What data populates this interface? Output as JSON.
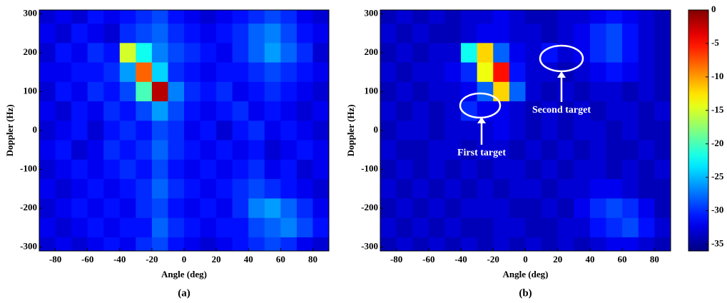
{
  "chart_data": [
    {
      "type": "heatmap",
      "label": "(a)",
      "xlabel": "Angle (deg)",
      "ylabel": "Doppler (Hz)",
      "colormap": "jet",
      "xlim": [
        -90,
        90
      ],
      "xticks": [
        -80,
        -60,
        -40,
        -20,
        0,
        20,
        40,
        60,
        80
      ],
      "ylim": [
        -310,
        310
      ],
      "yticks": [
        -300,
        -200,
        -100,
        0,
        100,
        200,
        300
      ],
      "clim": [
        -36,
        0
      ],
      "x": [
        -85,
        -75,
        -65,
        -55,
        -45,
        -35,
        -25,
        -15,
        -5,
        5,
        15,
        25,
        35,
        45,
        55,
        65,
        75,
        85
      ],
      "y": [
        300,
        250,
        200,
        150,
        100,
        50,
        0,
        -50,
        -100,
        -150,
        -200,
        -250,
        -300
      ],
      "z": [
        [
          -33,
          -32,
          -33,
          -31,
          -32,
          -31,
          -30,
          -29,
          -31,
          -32,
          -33,
          -32,
          -31,
          -30,
          -29,
          -30,
          -32,
          -33
        ],
        [
          -32,
          -33,
          -31,
          -32,
          -33,
          -30,
          -29,
          -28,
          -30,
          -31,
          -32,
          -31,
          -30,
          -28,
          -27,
          -29,
          -31,
          -32
        ],
        [
          -33,
          -31,
          -32,
          -30,
          -31,
          -15,
          -22,
          -27,
          -29,
          -30,
          -31,
          -32,
          -30,
          -28,
          -26,
          -28,
          -30,
          -33
        ],
        [
          -32,
          -32,
          -31,
          -31,
          -30,
          -26,
          -8,
          -24,
          -30,
          -31,
          -32,
          -31,
          -31,
          -30,
          -29,
          -30,
          -31,
          -32
        ],
        [
          -33,
          -31,
          -32,
          -30,
          -31,
          -29,
          -20,
          -2,
          -27,
          -30,
          -31,
          -30,
          -32,
          -31,
          -30,
          -31,
          -32,
          -33
        ],
        [
          -32,
          -33,
          -31,
          -32,
          -30,
          -31,
          -29,
          -26,
          -29,
          -31,
          -32,
          -31,
          -30,
          -32,
          -31,
          -32,
          -33,
          -32
        ],
        [
          -33,
          -32,
          -31,
          -33,
          -31,
          -30,
          -31,
          -29,
          -30,
          -32,
          -31,
          -33,
          -31,
          -30,
          -32,
          -31,
          -32,
          -33
        ],
        [
          -32,
          -31,
          -33,
          -32,
          -30,
          -31,
          -30,
          -28,
          -30,
          -31,
          -32,
          -31,
          -32,
          -31,
          -33,
          -32,
          -31,
          -32
        ],
        [
          -33,
          -32,
          -31,
          -32,
          -31,
          -30,
          -31,
          -29,
          -31,
          -32,
          -31,
          -32,
          -31,
          -30,
          -32,
          -31,
          -33,
          -32
        ],
        [
          -32,
          -33,
          -32,
          -31,
          -32,
          -31,
          -30,
          -28,
          -30,
          -31,
          -32,
          -31,
          -30,
          -29,
          -30,
          -31,
          -32,
          -33
        ],
        [
          -33,
          -32,
          -31,
          -32,
          -31,
          -32,
          -30,
          -29,
          -31,
          -32,
          -31,
          -32,
          -30,
          -27,
          -26,
          -28,
          -30,
          -32
        ],
        [
          -32,
          -33,
          -32,
          -31,
          -32,
          -31,
          -31,
          -28,
          -30,
          -31,
          -32,
          -31,
          -31,
          -29,
          -28,
          -27,
          -29,
          -31
        ],
        [
          -33,
          -32,
          -33,
          -32,
          -31,
          -32,
          -30,
          -29,
          -31,
          -32,
          -33,
          -32,
          -31,
          -30,
          -29,
          -30,
          -32,
          -33
        ]
      ]
    },
    {
      "type": "heatmap",
      "label": "(b)",
      "xlabel": "Angle (deg)",
      "ylabel": "Doppler (Hz)",
      "colormap": "jet",
      "xlim": [
        -90,
        90
      ],
      "xticks": [
        -80,
        -60,
        -40,
        -20,
        0,
        20,
        40,
        60,
        80
      ],
      "ylim": [
        -310,
        310
      ],
      "yticks": [
        -300,
        -200,
        -100,
        0,
        100,
        200,
        300
      ],
      "clim": [
        -36,
        0
      ],
      "cticks": [
        0,
        -5,
        -10,
        -15,
        -20,
        -25,
        -30,
        -35
      ],
      "annotations": [
        "First target",
        "Second target"
      ],
      "x": [
        -85,
        -75,
        -65,
        -55,
        -45,
        -35,
        -25,
        -15,
        -5,
        5,
        15,
        25,
        35,
        45,
        55,
        65,
        75,
        85
      ],
      "y": [
        300,
        250,
        200,
        150,
        100,
        50,
        0,
        -50,
        -100,
        -150,
        -200,
        -250,
        -300
      ],
      "z": [
        [
          -34,
          -33,
          -34,
          -33,
          -34,
          -33,
          -33,
          -32,
          -33,
          -34,
          -34,
          -33,
          -33,
          -32,
          -31,
          -32,
          -33,
          -34
        ],
        [
          -33,
          -34,
          -33,
          -34,
          -34,
          -33,
          -32,
          -32,
          -33,
          -33,
          -34,
          -33,
          -32,
          -30,
          -29,
          -31,
          -33,
          -34
        ],
        [
          -34,
          -33,
          -34,
          -33,
          -33,
          -22,
          -12,
          -28,
          -32,
          -33,
          -31,
          -33,
          -32,
          -30,
          -29,
          -31,
          -33,
          -34
        ],
        [
          -33,
          -34,
          -33,
          -33,
          -32,
          -30,
          -14,
          -5,
          -31,
          -33,
          -33,
          -34,
          -33,
          -32,
          -31,
          -32,
          -33,
          -34
        ],
        [
          -34,
          -33,
          -34,
          -33,
          -33,
          -32,
          -28,
          -12,
          -28,
          -33,
          -34,
          -33,
          -34,
          -33,
          -33,
          -34,
          -33,
          -34
        ],
        [
          -33,
          -34,
          -33,
          -34,
          -33,
          -30,
          -32,
          -32,
          -33,
          -34,
          -33,
          -34,
          -33,
          -34,
          -33,
          -33,
          -34,
          -33
        ],
        [
          -34,
          -33,
          -33,
          -34,
          -33,
          -33,
          -33,
          -32,
          -33,
          -34,
          -33,
          -34,
          -33,
          -33,
          -34,
          -33,
          -34,
          -34
        ],
        [
          -33,
          -34,
          -34,
          -33,
          -33,
          -34,
          -33,
          -33,
          -34,
          -33,
          -34,
          -33,
          -34,
          -33,
          -34,
          -34,
          -33,
          -34
        ],
        [
          -34,
          -33,
          -34,
          -33,
          -34,
          -33,
          -34,
          -33,
          -33,
          -34,
          -33,
          -34,
          -33,
          -33,
          -34,
          -33,
          -34,
          -33
        ],
        [
          -33,
          -34,
          -33,
          -34,
          -33,
          -34,
          -33,
          -34,
          -33,
          -33,
          -34,
          -33,
          -33,
          -32,
          -32,
          -33,
          -34,
          -34
        ],
        [
          -34,
          -33,
          -34,
          -33,
          -34,
          -33,
          -33,
          -33,
          -34,
          -34,
          -33,
          -34,
          -32,
          -30,
          -29,
          -30,
          -32,
          -34
        ],
        [
          -33,
          -34,
          -33,
          -34,
          -33,
          -34,
          -34,
          -33,
          -33,
          -34,
          -34,
          -33,
          -33,
          -31,
          -30,
          -29,
          -31,
          -33
        ],
        [
          -34,
          -33,
          -34,
          -33,
          -34,
          -33,
          -34,
          -33,
          -34,
          -33,
          -34,
          -33,
          -34,
          -33,
          -32,
          -32,
          -33,
          -34
        ]
      ]
    }
  ]
}
